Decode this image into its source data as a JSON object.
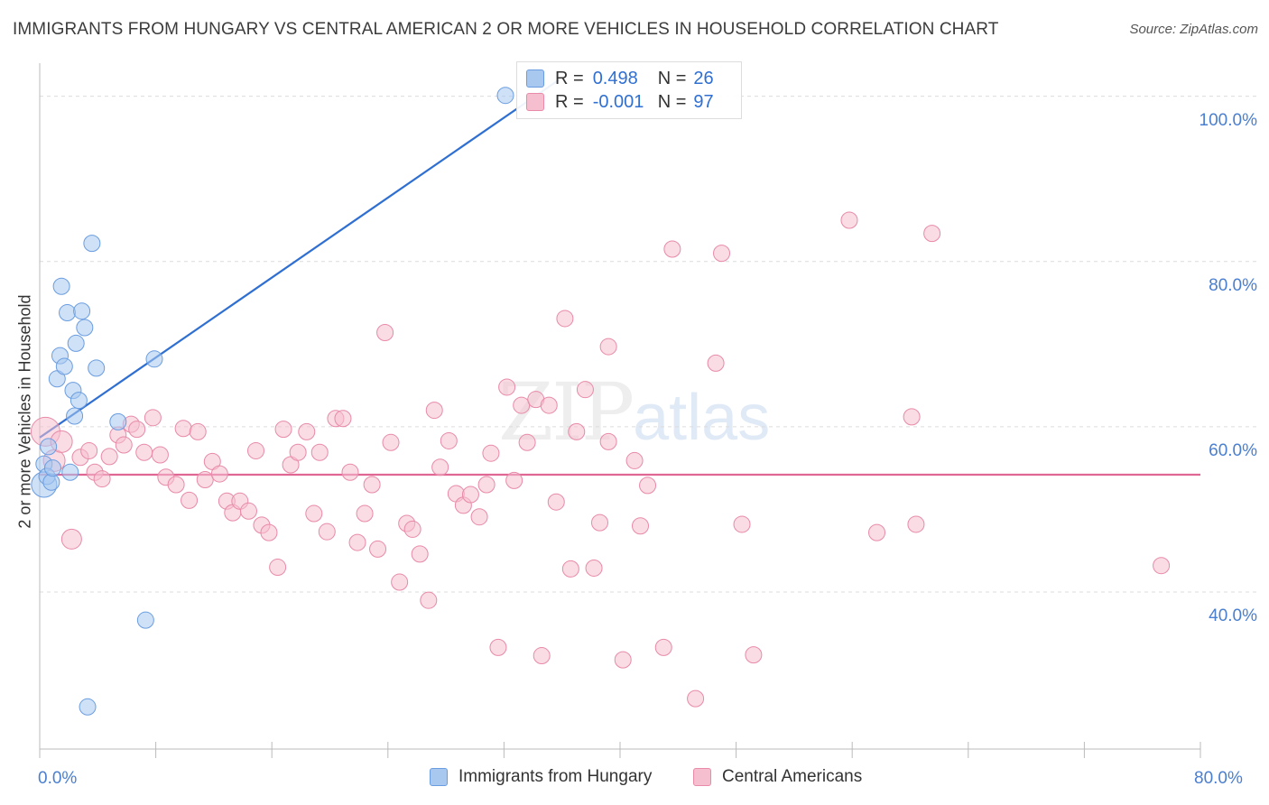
{
  "header": {
    "title": "IMMIGRANTS FROM HUNGARY VS CENTRAL AMERICAN 2 OR MORE VEHICLES IN HOUSEHOLD CORRELATION CHART",
    "source": "Source: ZipAtlas.com"
  },
  "watermark": {
    "zip": "ZIP",
    "atlas": "atlas"
  },
  "legend": {
    "rows": [
      {
        "r_key": "R =",
        "r_val": "0.498",
        "n_key": "N =",
        "n_val": "26",
        "color": "#a8c8f0",
        "border": "#6a9de0"
      },
      {
        "r_key": "R =",
        "r_val": "-0.001",
        "n_key": "N =",
        "n_val": "97",
        "color": "#f6bfd0",
        "border": "#e88aa8"
      }
    ]
  },
  "bottom_legend": {
    "items": [
      {
        "label": "Immigrants from Hungary",
        "color": "#a8c8f0",
        "border": "#6a9de0"
      },
      {
        "label": "Central Americans",
        "color": "#f6bfd0",
        "border": "#e88aa8"
      }
    ]
  },
  "chart_data": {
    "type": "scatter",
    "title": "IMMIGRANTS FROM HUNGARY VS CENTRAL AMERICAN 2 OR MORE VEHICLES IN HOUSEHOLD CORRELATION CHART",
    "xlabel": "",
    "ylabel": "2 or more Vehicles in Household",
    "xlim": [
      0,
      80
    ],
    "ylim": [
      21,
      104
    ],
    "x_tick_labels": [
      "0.0%",
      "80.0%"
    ],
    "y_ticks": [
      40,
      60,
      80,
      100
    ],
    "y_tick_labels": [
      "40.0%",
      "60.0%",
      "80.0%",
      "100.0%"
    ],
    "grid": "horizontal-dashed",
    "legend_position": "top-center",
    "series": [
      {
        "name": "Immigrants from Hungary",
        "color": "#6a9de0",
        "fill": "#a8c8f0",
        "trend": {
          "x": [
            0,
            35.8
          ],
          "y": [
            58.7,
            102.0
          ],
          "color": "#2f6fd1"
        },
        "points": [
          [
            0.3,
            53.0,
            14
          ],
          [
            0.3,
            55.5,
            9
          ],
          [
            0.5,
            54.0,
            9
          ],
          [
            0.6,
            57.6,
            9
          ],
          [
            0.8,
            53.3,
            9
          ],
          [
            0.9,
            55.0,
            9
          ],
          [
            1.2,
            65.8,
            9
          ],
          [
            1.4,
            68.6,
            9
          ],
          [
            1.5,
            77.0,
            9
          ],
          [
            1.7,
            67.3,
            9
          ],
          [
            1.9,
            73.8,
            9
          ],
          [
            2.1,
            54.5,
            9
          ],
          [
            2.3,
            64.4,
            9
          ],
          [
            2.4,
            61.3,
            9
          ],
          [
            2.5,
            70.1,
            9
          ],
          [
            2.7,
            63.2,
            9
          ],
          [
            2.9,
            74.0,
            9
          ],
          [
            3.1,
            72.0,
            9
          ],
          [
            3.3,
            26.1,
            9
          ],
          [
            3.6,
            82.2,
            9
          ],
          [
            3.9,
            67.1,
            9
          ],
          [
            5.4,
            60.6,
            9
          ],
          [
            7.3,
            36.6,
            9
          ],
          [
            7.9,
            68.2,
            9
          ],
          [
            32.1,
            100.1,
            9
          ]
        ]
      },
      {
        "name": "Central Americans",
        "color": "#e88aa8",
        "fill": "#f6bfd0",
        "trend": {
          "x": [
            0,
            80
          ],
          "y": [
            54.2,
            54.2
          ],
          "color": "#e06694"
        },
        "points": [
          [
            0.4,
            59.4,
            16
          ],
          [
            1.0,
            55.9,
            12
          ],
          [
            1.5,
            58.2,
            12
          ],
          [
            2.2,
            46.4,
            11
          ],
          [
            2.8,
            56.3,
            9
          ],
          [
            3.4,
            57.1,
            9
          ],
          [
            3.8,
            54.5,
            9
          ],
          [
            4.3,
            53.7,
            9
          ],
          [
            4.8,
            56.4,
            9
          ],
          [
            5.4,
            59.0,
            9
          ],
          [
            5.8,
            57.8,
            9
          ],
          [
            6.3,
            60.3,
            9
          ],
          [
            6.7,
            59.7,
            9
          ],
          [
            7.2,
            56.9,
            9
          ],
          [
            7.8,
            61.1,
            9
          ],
          [
            8.3,
            56.6,
            9
          ],
          [
            8.7,
            53.9,
            9
          ],
          [
            9.4,
            53.0,
            9
          ],
          [
            9.9,
            59.8,
            9
          ],
          [
            10.3,
            51.1,
            9
          ],
          [
            10.9,
            59.4,
            9
          ],
          [
            11.4,
            53.6,
            9
          ],
          [
            11.9,
            55.8,
            9
          ],
          [
            12.4,
            54.3,
            9
          ],
          [
            12.9,
            51.0,
            9
          ],
          [
            13.3,
            49.6,
            9
          ],
          [
            13.8,
            51.0,
            9
          ],
          [
            14.4,
            49.8,
            9
          ],
          [
            14.9,
            57.1,
            9
          ],
          [
            15.3,
            48.1,
            9
          ],
          [
            15.8,
            47.2,
            9
          ],
          [
            16.4,
            43.0,
            9
          ],
          [
            16.8,
            59.7,
            9
          ],
          [
            17.3,
            55.4,
            9
          ],
          [
            17.8,
            56.9,
            9
          ],
          [
            18.4,
            59.4,
            9
          ],
          [
            18.9,
            49.5,
            9
          ],
          [
            19.3,
            56.9,
            9
          ],
          [
            19.8,
            47.3,
            9
          ],
          [
            20.4,
            61.0,
            9
          ],
          [
            20.9,
            61.0,
            9
          ],
          [
            21.4,
            54.5,
            9
          ],
          [
            21.9,
            46.0,
            9
          ],
          [
            22.4,
            49.5,
            9
          ],
          [
            22.9,
            53.0,
            9
          ],
          [
            23.3,
            45.2,
            9
          ],
          [
            23.8,
            71.4,
            9
          ],
          [
            24.2,
            58.1,
            9
          ],
          [
            24.8,
            41.2,
            9
          ],
          [
            25.3,
            48.3,
            9
          ],
          [
            25.7,
            47.6,
            9
          ],
          [
            26.2,
            44.6,
            9
          ],
          [
            26.8,
            39.0,
            9
          ],
          [
            27.2,
            62.0,
            9
          ],
          [
            27.6,
            55.1,
            9
          ],
          [
            28.2,
            58.3,
            9
          ],
          [
            28.7,
            51.9,
            9
          ],
          [
            29.2,
            50.5,
            9
          ],
          [
            29.7,
            51.8,
            9
          ],
          [
            30.3,
            49.1,
            9
          ],
          [
            30.8,
            53.0,
            9
          ],
          [
            31.1,
            56.8,
            9
          ],
          [
            31.6,
            33.3,
            9
          ],
          [
            32.2,
            64.8,
            9
          ],
          [
            32.7,
            53.5,
            9
          ],
          [
            33.2,
            62.6,
            9
          ],
          [
            33.6,
            58.1,
            9
          ],
          [
            34.2,
            63.3,
            9
          ],
          [
            34.6,
            32.3,
            9
          ],
          [
            35.1,
            62.6,
            9
          ],
          [
            35.6,
            50.9,
            9
          ],
          [
            36.2,
            73.1,
            9
          ],
          [
            36.6,
            42.8,
            9
          ],
          [
            37.0,
            59.4,
            9
          ],
          [
            37.6,
            64.5,
            9
          ],
          [
            38.2,
            42.9,
            9
          ],
          [
            38.6,
            48.4,
            9
          ],
          [
            39.2,
            58.2,
            9
          ],
          [
            39.2,
            69.7,
            9
          ],
          [
            40.2,
            31.8,
            9
          ],
          [
            41.0,
            55.9,
            9
          ],
          [
            41.4,
            48.0,
            9
          ],
          [
            41.9,
            52.9,
            9
          ],
          [
            43.0,
            33.3,
            9
          ],
          [
            43.6,
            81.5,
            9
          ],
          [
            45.2,
            27.1,
            9
          ],
          [
            46.6,
            67.7,
            9
          ],
          [
            47.0,
            81.0,
            9
          ],
          [
            48.4,
            48.2,
            9
          ],
          [
            49.2,
            32.4,
            9
          ],
          [
            55.8,
            85.0,
            9
          ],
          [
            57.7,
            47.2,
            9
          ],
          [
            60.1,
            61.2,
            9
          ],
          [
            60.4,
            48.2,
            9
          ],
          [
            61.5,
            83.4,
            9
          ],
          [
            77.3,
            43.2,
            9
          ]
        ]
      }
    ]
  }
}
